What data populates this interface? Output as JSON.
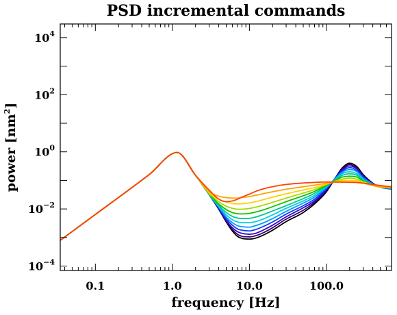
{
  "chart_data": {
    "type": "line",
    "title": "PSD incremental commands",
    "xlabel": "frequency [Hz]",
    "ylabel_main": "power [nm",
    "ylabel_sup": "2",
    "ylabel_end": "]",
    "x_scale": "log",
    "y_scale": "log",
    "xlim": [
      0.035,
      700
    ],
    "ylim": [
      7e-05,
      30000
    ],
    "grid": false,
    "legend": "none",
    "x_ticks": [
      {
        "value": 0.1,
        "label": "0.1"
      },
      {
        "value": 1,
        "label": "1.0"
      },
      {
        "value": 10,
        "label": "10.0"
      },
      {
        "value": 100,
        "label": "100.0"
      }
    ],
    "y_ticks": [
      {
        "value": 0.0001,
        "base": "10",
        "exp": "−4"
      },
      {
        "value": 0.01,
        "base": "10",
        "exp": "−2"
      },
      {
        "value": 1,
        "base": "10",
        "exp": "0"
      },
      {
        "value": 100,
        "base": "10",
        "exp": "2"
      },
      {
        "value": 10000,
        "base": "10",
        "exp": "4"
      }
    ],
    "x": [
      0.035,
      0.1,
      0.5,
      1.15,
      2,
      3,
      4,
      5,
      6,
      7,
      8,
      10,
      12,
      15,
      20,
      30,
      50,
      70,
      100,
      130,
      160,
      200,
      250,
      300,
      400,
      500,
      700
    ],
    "series": [
      {
        "color": "#000000",
        "values": [
          0.0008,
          0.0064,
          0.16,
          0.95,
          0.15,
          0.032,
          0.0098,
          0.0035,
          0.0017,
          0.0011,
          0.00093,
          0.00088,
          0.00095,
          0.0012,
          0.0018,
          0.0036,
          0.0075,
          0.015,
          0.04,
          0.12,
          0.27,
          0.4,
          0.3,
          0.16,
          0.08,
          0.058,
          0.05
        ]
      },
      {
        "color": "#3a0070",
        "values": [
          0.0008,
          0.0064,
          0.16,
          0.95,
          0.15,
          0.032,
          0.01,
          0.0037,
          0.0019,
          0.0013,
          0.0011,
          0.00105,
          0.00115,
          0.00145,
          0.0022,
          0.0044,
          0.009,
          0.017,
          0.044,
          0.12,
          0.25,
          0.36,
          0.27,
          0.15,
          0.078,
          0.058,
          0.05
        ]
      },
      {
        "color": "#3c00c8",
        "values": [
          0.0008,
          0.0064,
          0.16,
          0.95,
          0.15,
          0.032,
          0.0105,
          0.004,
          0.0022,
          0.0016,
          0.0014,
          0.0013,
          0.0014,
          0.0018,
          0.0027,
          0.0053,
          0.011,
          0.019,
          0.048,
          0.12,
          0.23,
          0.32,
          0.25,
          0.14,
          0.077,
          0.058,
          0.05
        ]
      },
      {
        "color": "#0040ff",
        "values": [
          0.0008,
          0.0064,
          0.16,
          0.95,
          0.15,
          0.032,
          0.011,
          0.0045,
          0.0027,
          0.002,
          0.0018,
          0.0017,
          0.0019,
          0.0024,
          0.0035,
          0.0066,
          0.013,
          0.022,
          0.052,
          0.12,
          0.21,
          0.28,
          0.22,
          0.13,
          0.076,
          0.058,
          0.051
        ]
      },
      {
        "color": "#0098ff",
        "values": [
          0.0008,
          0.0064,
          0.16,
          0.95,
          0.15,
          0.032,
          0.0115,
          0.0052,
          0.0033,
          0.0026,
          0.0024,
          0.0023,
          0.0026,
          0.0032,
          0.0046,
          0.0082,
          0.016,
          0.026,
          0.056,
          0.115,
          0.19,
          0.24,
          0.2,
          0.12,
          0.074,
          0.058,
          0.052
        ]
      },
      {
        "color": "#00d0e0",
        "values": [
          0.0008,
          0.0064,
          0.16,
          0.95,
          0.15,
          0.032,
          0.0125,
          0.0062,
          0.0042,
          0.0035,
          0.0033,
          0.0033,
          0.0036,
          0.0044,
          0.0062,
          0.0105,
          0.019,
          0.03,
          0.06,
          0.11,
          0.17,
          0.2,
          0.17,
          0.11,
          0.072,
          0.058,
          0.053
        ]
      },
      {
        "color": "#00c890",
        "values": [
          0.0008,
          0.0064,
          0.16,
          0.95,
          0.15,
          0.033,
          0.0135,
          0.0075,
          0.0055,
          0.0048,
          0.0046,
          0.0047,
          0.0052,
          0.0063,
          0.0085,
          0.013,
          0.023,
          0.035,
          0.064,
          0.105,
          0.15,
          0.17,
          0.15,
          0.1,
          0.07,
          0.058,
          0.054
        ]
      },
      {
        "color": "#10c000",
        "values": [
          0.0008,
          0.0064,
          0.16,
          0.95,
          0.15,
          0.034,
          0.015,
          0.0095,
          0.0075,
          0.0068,
          0.0067,
          0.007,
          0.0078,
          0.0092,
          0.012,
          0.018,
          0.029,
          0.041,
          0.068,
          0.1,
          0.13,
          0.14,
          0.13,
          0.095,
          0.069,
          0.058,
          0.055
        ]
      },
      {
        "color": "#a8d800",
        "values": [
          0.0008,
          0.0064,
          0.16,
          0.95,
          0.15,
          0.035,
          0.018,
          0.0125,
          0.0105,
          0.0098,
          0.0098,
          0.0104,
          0.0115,
          0.0135,
          0.017,
          0.024,
          0.036,
          0.048,
          0.072,
          0.095,
          0.11,
          0.12,
          0.11,
          0.09,
          0.068,
          0.058,
          0.056
        ]
      },
      {
        "color": "#ffd000",
        "values": [
          0.0008,
          0.0064,
          0.16,
          0.95,
          0.15,
          0.037,
          0.022,
          0.0175,
          0.0155,
          0.015,
          0.0152,
          0.0162,
          0.018,
          0.021,
          0.026,
          0.034,
          0.046,
          0.056,
          0.075,
          0.09,
          0.098,
          0.1,
          0.097,
          0.085,
          0.067,
          0.058,
          0.057
        ]
      },
      {
        "color": "#ffa000",
        "values": [
          0.0008,
          0.0064,
          0.16,
          0.95,
          0.15,
          0.04,
          0.028,
          0.025,
          0.024,
          0.024,
          0.025,
          0.027,
          0.03,
          0.034,
          0.04,
          0.049,
          0.06,
          0.068,
          0.08,
          0.086,
          0.088,
          0.088,
          0.086,
          0.08,
          0.066,
          0.059,
          0.058
        ]
      },
      {
        "color": "#ff4000",
        "values": [
          0.0008,
          0.0064,
          0.16,
          0.95,
          0.15,
          0.046,
          0.022,
          0.018,
          0.019,
          0.022,
          0.026,
          0.033,
          0.041,
          0.05,
          0.06,
          0.072,
          0.081,
          0.085,
          0.088,
          0.088,
          0.087,
          0.086,
          0.084,
          0.08,
          0.072,
          0.066,
          0.06
        ]
      }
    ]
  }
}
